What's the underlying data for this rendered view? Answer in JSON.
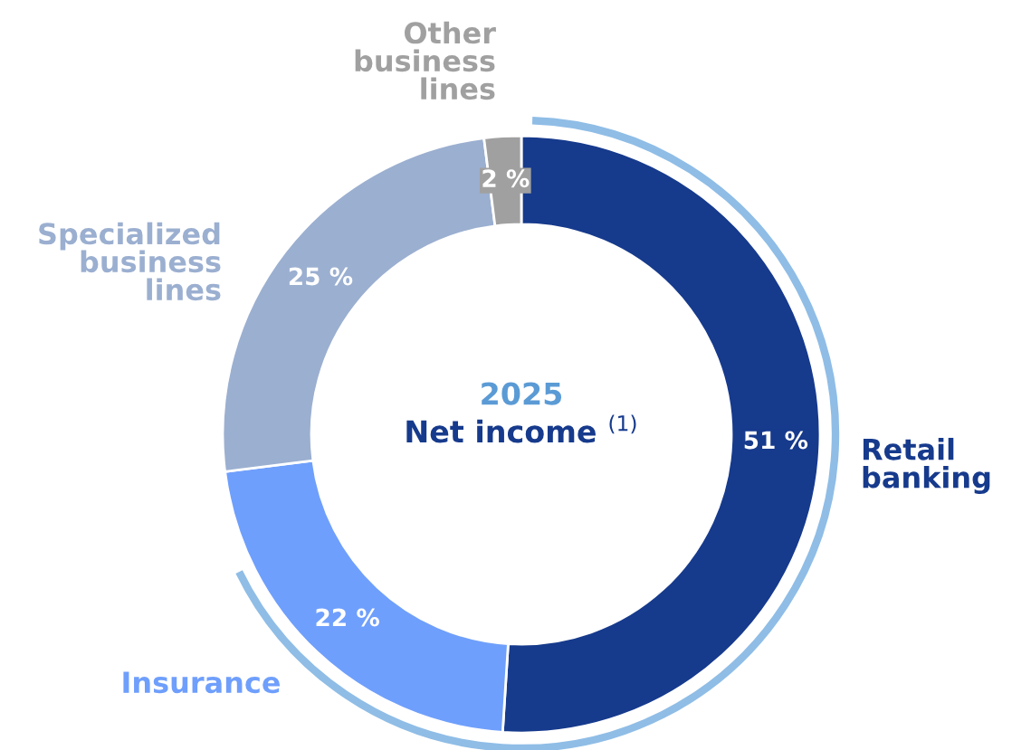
{
  "chart_data": {
    "type": "donut",
    "title": "2025",
    "subtitle": "Net income $^{(1)}$",
    "categories": [
      "Retail banking",
      "Insurance",
      "Specialized business lines",
      "Other business lines"
    ],
    "values": [
      51,
      22,
      25,
      2
    ],
    "colors": [
      "#163a8c",
      "#6f9ffc",
      "#9bafd0",
      "#a0a0a0"
    ],
    "value_labels": [
      "51 %",
      "22 %",
      "25 %",
      "2 %"
    ],
    "legend": false
  }
}
